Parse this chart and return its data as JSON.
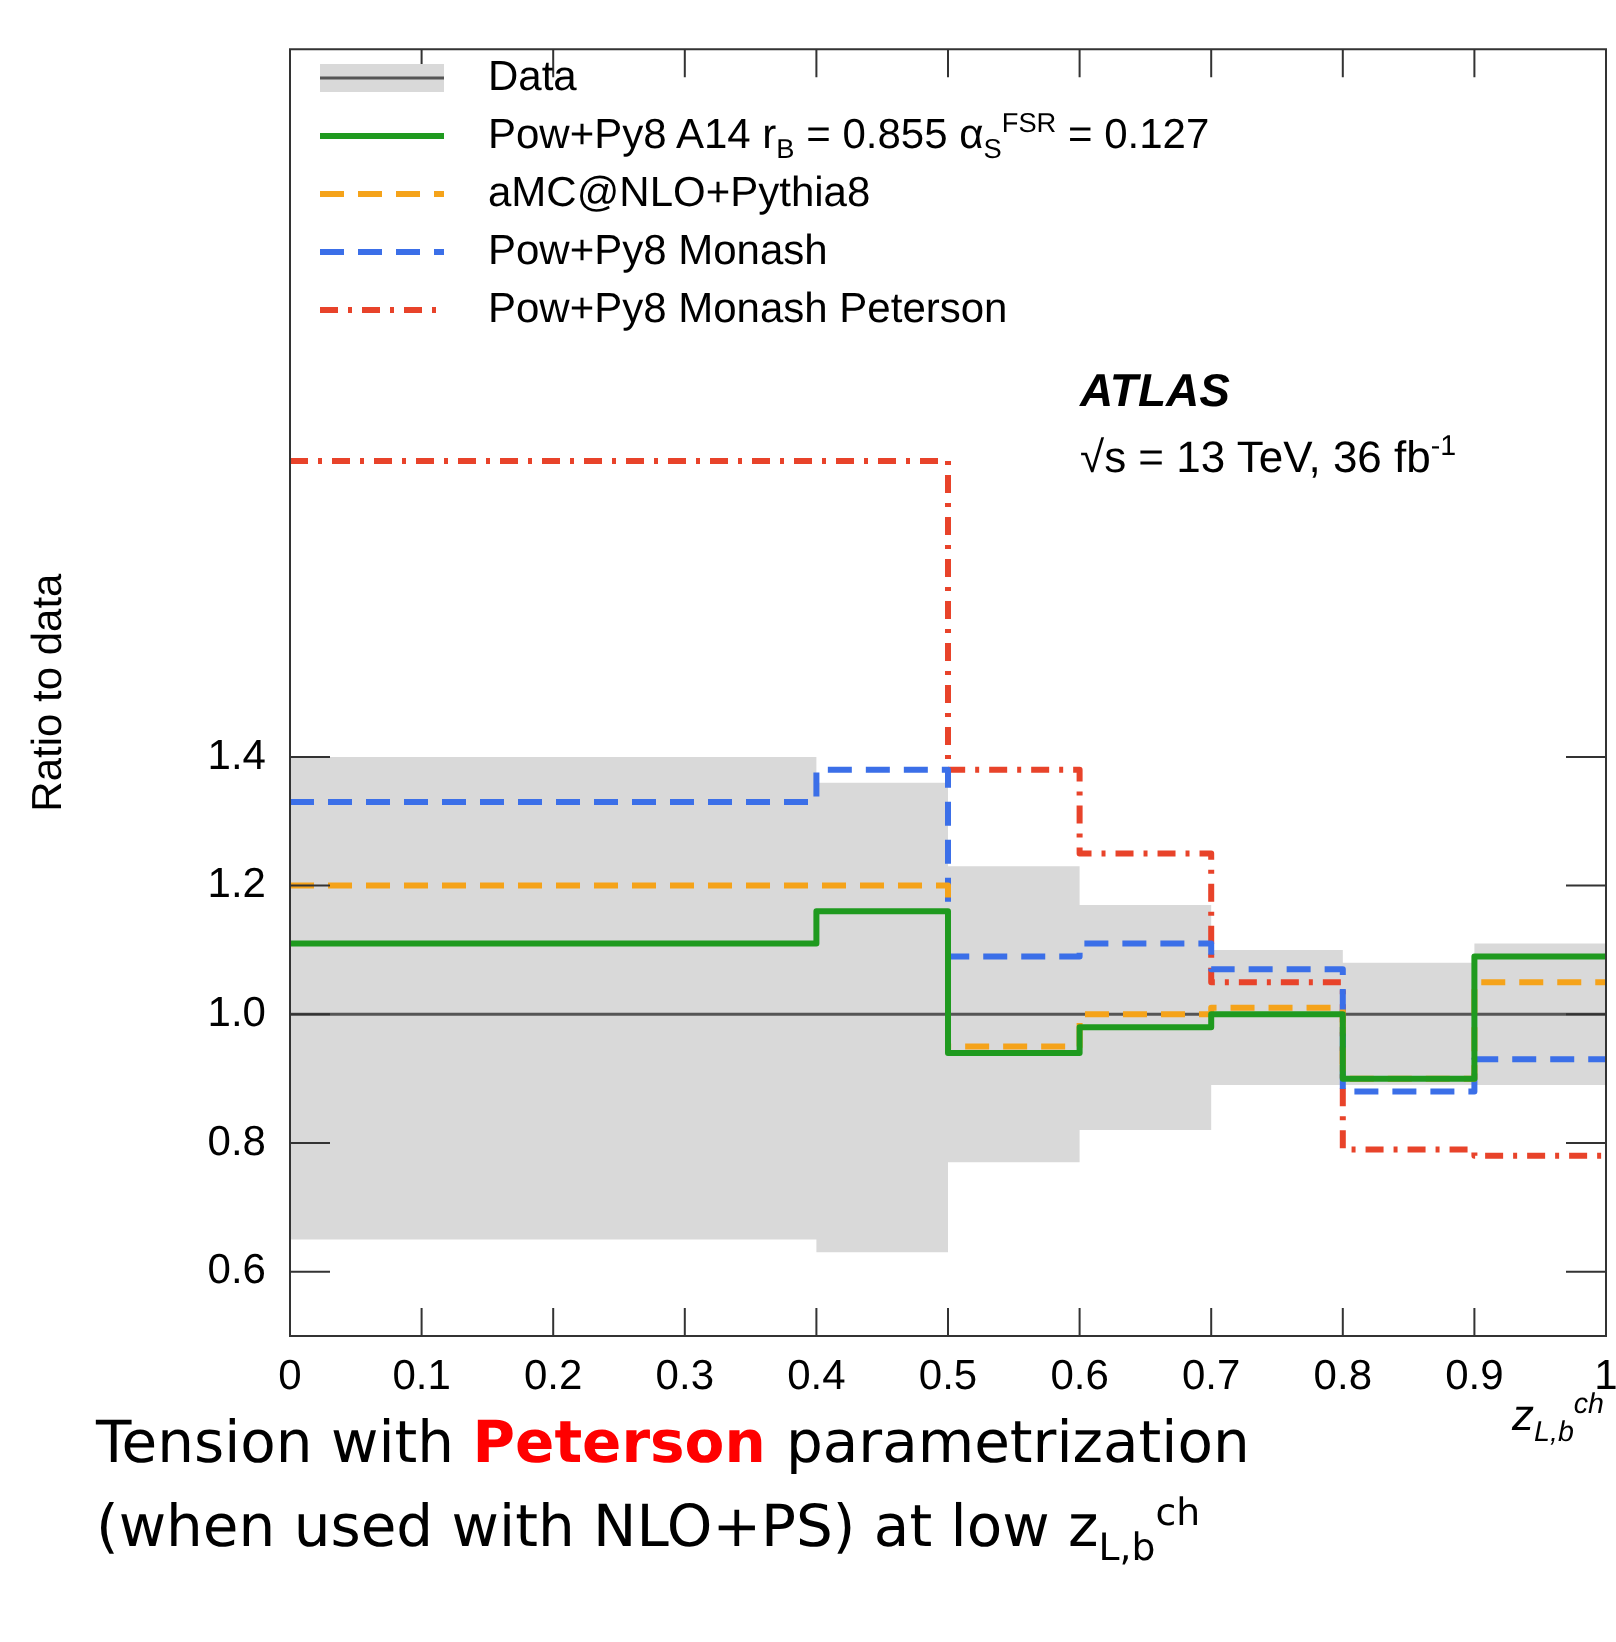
{
  "chart_data": {
    "type": "step",
    "ylabel": "Ratio to data",
    "xlabel": "z$_{L,b}$$^{ch}$",
    "x": [
      0,
      0.4,
      0.5,
      0.6,
      0.7,
      0.8,
      0.9,
      1.0
    ],
    "series": [
      {
        "name": "Data",
        "color": "#555555",
        "values": [
          1,
          1,
          1,
          1,
          1,
          1,
          1,
          1
        ],
        "lower": [
          0.65,
          0.63,
          0.77,
          0.82,
          0.89,
          0.89,
          0.89,
          0.89
        ],
        "upper": [
          1.4,
          1.36,
          1.23,
          1.17,
          1.1,
          1.08,
          1.11,
          1.11
        ],
        "line_style": "solid"
      },
      {
        "name": "Pow+Py8 A14 r$_{B}$ = 0.855 α$_{S}$$^{FSR}$ = 0.127",
        "color": "#1f9a1f",
        "values": [
          1.11,
          1.16,
          0.94,
          0.98,
          1.0,
          0.9,
          1.09,
          1.09
        ],
        "line_style": "solid"
      },
      {
        "name": "aMC@NLO+Pythia8",
        "color": "#f5a31a",
        "values": [
          1.2,
          1.2,
          0.95,
          1.0,
          1.01,
          0.9,
          1.05,
          1.05
        ],
        "line_style": "dashed"
      },
      {
        "name": "Pow+Py8 Monash",
        "color": "#3b6fe8",
        "values": [
          1.33,
          1.38,
          1.09,
          1.11,
          1.07,
          0.88,
          0.93,
          0.93
        ],
        "line_style": "dashed"
      },
      {
        "name": "Pow+Py8 Monash Peterson",
        "color": "#e8432a",
        "values": [
          1.86,
          1.86,
          1.38,
          1.25,
          1.05,
          0.79,
          0.78,
          0.78
        ],
        "line_style": "dashdot"
      }
    ],
    "xlim": [
      0,
      1
    ],
    "xticks": [
      0,
      0.1,
      0.2,
      0.3,
      0.4,
      0.5,
      0.6,
      0.7,
      0.8,
      0.9,
      1
    ],
    "ylim": [
      0.5,
      2.5
    ],
    "yticks": [
      0.6,
      0.8,
      {
        "value": 1,
        "label": "1.0"
      },
      1.2,
      1.4
    ],
    "grid": false,
    "legend": "top left",
    "annotations": [
      "ATLAS",
      "√s = 13 TeV, 36 fb$^{-1}$",
      "Tension with",
      "Peterson",
      "parametrization",
      "(when used with NLO+PS) at low z$_{L,b}$$^{ch}$"
    ]
  }
}
